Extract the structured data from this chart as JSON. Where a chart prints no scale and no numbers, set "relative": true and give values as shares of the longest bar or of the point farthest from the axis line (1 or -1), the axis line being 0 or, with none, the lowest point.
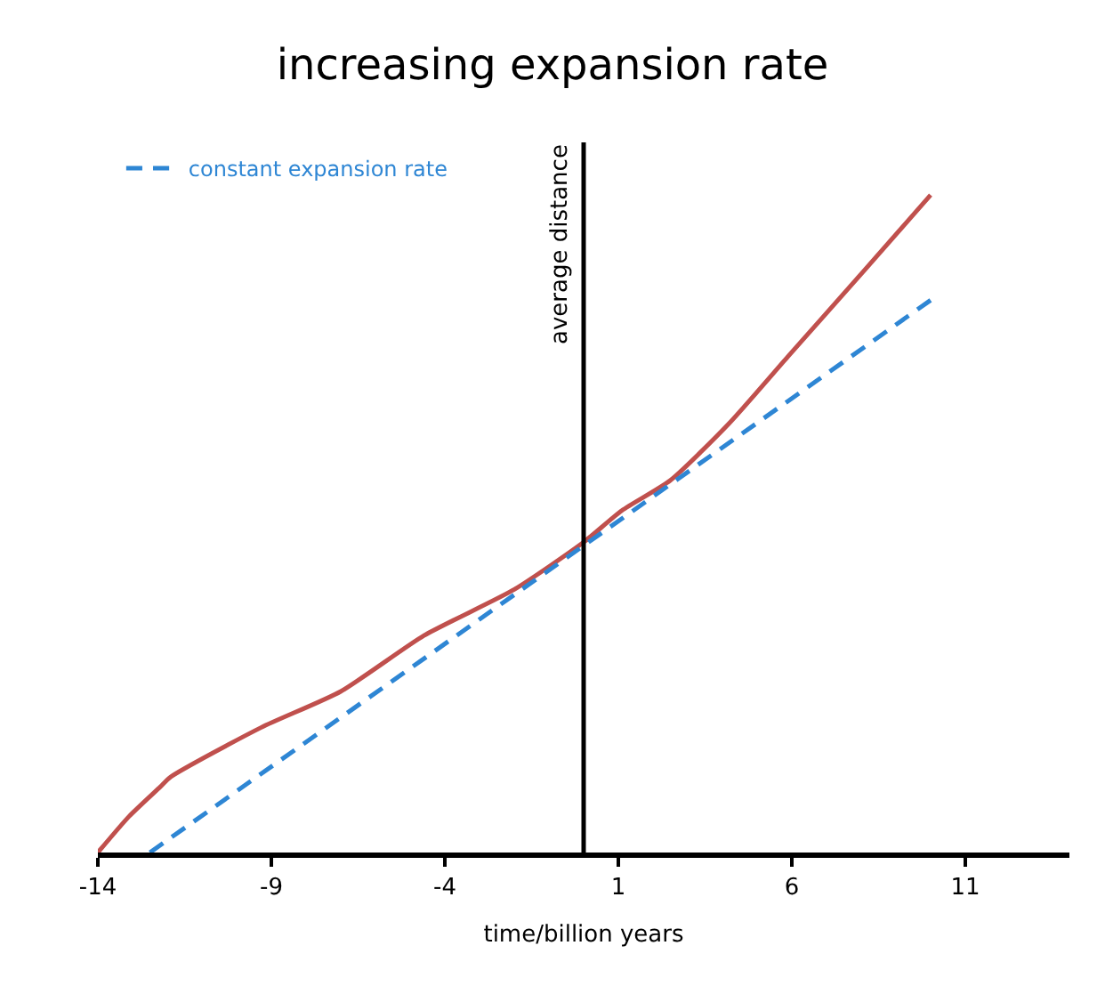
{
  "chart_data": {
    "type": "line",
    "title": "increasing expansion rate",
    "xlabel": "time/billion years",
    "relative": true,
    "xlim": [
      -14,
      14
    ],
    "xticks": [
      -14,
      -9,
      -4,
      1,
      6,
      11
    ],
    "legend": "top left",
    "series": [
      {
        "color": "#c0504d",
        "line_style": "solid",
        "x": [
          -14,
          -13.1,
          -12.2,
          -11.9,
          -9.3,
          -7,
          -4.6,
          -2,
          0,
          1.1,
          2.5,
          4.2,
          5.9,
          8.1,
          10
        ],
        "values": [
          0,
          0.055,
          0.1,
          0.115,
          0.19,
          0.245,
          0.33,
          0.4,
          0.472,
          0.52,
          0.566,
          0.653,
          0.755,
          0.886,
          1
        ]
      },
      {
        "name": "constant expansion rate",
        "color": "#2e86d4",
        "line_style": "dashed",
        "x": [
          -12.5,
          10
        ],
        "values": [
          0,
          0.84
        ]
      }
    ],
    "ref_lines": [
      {
        "axis": "x",
        "value": 0,
        "label": "average distance",
        "color": "#000000"
      }
    ]
  }
}
